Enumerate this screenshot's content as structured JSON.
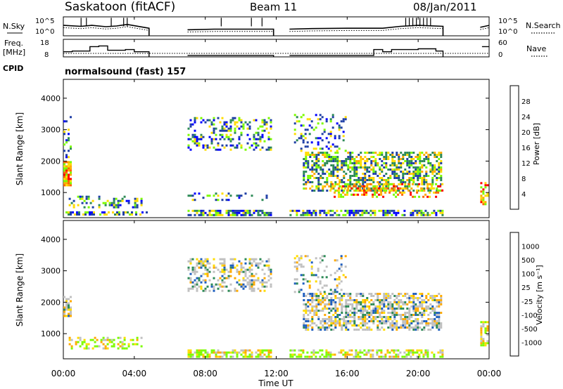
{
  "header": {
    "station": "Saskatoon (fitACF)",
    "beam": "Beam 11",
    "date": "08/Jan/2011",
    "cpid_label": "CPID",
    "program": "normalsound (fast) 157",
    "time_axis_label": "Time UT"
  },
  "chart_data": [
    {
      "type": "line",
      "id": "noise-panel",
      "left_label": "N.Sky",
      "right_label": "N.Search",
      "left_ticks": [
        "10^5",
        "10^0"
      ],
      "right_ticks": [
        "10^5",
        "10^0"
      ],
      "x_range": [
        0,
        24
      ],
      "gaps_hours": [
        [
          4.83,
          7.0
        ],
        [
          11.85,
          12.75
        ],
        [
          21.4,
          24.0
        ]
      ],
      "sky_series": [
        [
          0.0,
          0.55
        ],
        [
          1.0,
          0.5
        ],
        [
          1.6,
          0.55
        ],
        [
          2.4,
          0.48
        ],
        [
          3.0,
          0.52
        ],
        [
          3.6,
          0.6
        ],
        [
          4.83,
          0.4
        ],
        [
          7.0,
          0.32
        ],
        [
          8.5,
          0.35
        ],
        [
          10.0,
          0.35
        ],
        [
          11.85,
          0.35
        ],
        [
          12.75,
          0.35
        ],
        [
          14.0,
          0.38
        ],
        [
          16.0,
          0.4
        ],
        [
          18.0,
          0.4
        ],
        [
          19.0,
          0.5
        ],
        [
          20.0,
          0.55
        ],
        [
          21.4,
          0.5
        ],
        [
          23.5,
          0.45
        ],
        [
          24.0,
          0.55
        ]
      ],
      "search_series": "dotted",
      "spikes_hours": [
        1.0,
        1.3,
        2.7,
        3.4,
        3.6,
        8.9,
        10.6,
        11.2,
        19.3,
        19.5,
        19.7,
        19.9,
        20.1,
        20.3,
        20.5,
        20.7
      ]
    },
    {
      "type": "line",
      "id": "freq-panel",
      "left_label": "Freq.",
      "left_unit": "[MHz]",
      "left_ticks": [
        "18",
        "8"
      ],
      "right_label": "Nave",
      "right_ticks": [
        "60",
        "0"
      ],
      "x_range": [
        0,
        24
      ],
      "freq_steps_mhz": [
        [
          0.0,
          10.5
        ],
        [
          0.5,
          11.0
        ],
        [
          1.5,
          14.0
        ],
        [
          2.0,
          14.5
        ],
        [
          2.5,
          11.5
        ],
        [
          3.5,
          12.0
        ],
        [
          4.0,
          10.5
        ],
        [
          4.83,
          null
        ],
        [
          7.0,
          8.0
        ],
        [
          10.5,
          8.0
        ],
        [
          11.85,
          null
        ],
        [
          12.75,
          8.0
        ],
        [
          17.0,
          8.0
        ],
        [
          17.5,
          12.0
        ],
        [
          18.0,
          10.5
        ],
        [
          18.5,
          12.0
        ],
        [
          20.0,
          12.5
        ],
        [
          21.0,
          11.0
        ],
        [
          21.4,
          null
        ],
        [
          23.6,
          14.0
        ],
        [
          24.0,
          14.0
        ]
      ],
      "nave_dotted": 12
    },
    {
      "type": "heatmap",
      "id": "power-panel",
      "ylabel": "Slant Range [km]",
      "yticks": [
        1000,
        2000,
        3000,
        4000
      ],
      "ylim": [
        200,
        4600
      ],
      "x_range_hours": [
        0,
        24
      ],
      "colorbar": {
        "label": "Power [dB]",
        "ticks": [
          "28",
          "24",
          "20",
          "16",
          "12",
          "8",
          "4"
        ],
        "colors": [
          "#ff0000",
          "#ff6600",
          "#ffaa00",
          "#ffdd00",
          "#7cfc00",
          "#2e8b57",
          "#1f3fa6",
          "#0000ff"
        ]
      },
      "scatter_regions": [
        [
          0.0,
          0.5,
          1200,
          2000,
          0.9,
          "high"
        ],
        [
          0.0,
          0.5,
          2000,
          3500,
          0.25,
          "low"
        ],
        [
          0.3,
          4.5,
          500,
          900,
          0.35,
          "low"
        ],
        [
          0.0,
          4.8,
          250,
          400,
          0.5,
          "low"
        ],
        [
          7.0,
          11.8,
          250,
          450,
          0.7,
          "low"
        ],
        [
          7.0,
          11.8,
          2300,
          3400,
          0.3,
          "low"
        ],
        [
          7.0,
          11.8,
          700,
          1000,
          0.2,
          "low"
        ],
        [
          12.75,
          21.4,
          250,
          450,
          0.6,
          "low"
        ],
        [
          13.5,
          21.4,
          1000,
          2300,
          0.55,
          "mid"
        ],
        [
          15.0,
          21.4,
          800,
          1300,
          0.35,
          "high"
        ],
        [
          13.0,
          16.0,
          2300,
          3500,
          0.2,
          "low"
        ],
        [
          23.5,
          24.0,
          600,
          1400,
          0.6,
          "high"
        ]
      ]
    },
    {
      "type": "heatmap",
      "id": "velocity-panel",
      "ylabel": "Slant Range [km]",
      "yticks": [
        1000,
        2000,
        3000,
        4000
      ],
      "ylim": [
        200,
        4600
      ],
      "x_range_hours": [
        0,
        24
      ],
      "xticks": [
        "00:00",
        "04:00",
        "08:00",
        "12:00",
        "16:00",
        "20:00",
        "00:00"
      ],
      "xlabel": "Time UT",
      "colorbar": {
        "label": "Velocity [m s⁻¹]",
        "ticks": [
          "1000",
          "500",
          "100",
          "25",
          "-25",
          "-100",
          "-500",
          "-1000"
        ],
        "colors": [
          "#0000ff",
          "#1f5fbf",
          "#2e8b57",
          "#7cfc00",
          "#c0c0c0",
          "#ffdd00",
          "#ffaa00",
          "#ff6600",
          "#ff0000"
        ]
      },
      "scatter_regions": [
        [
          0.0,
          0.5,
          1500,
          2200,
          0.5,
          "grey"
        ],
        [
          0.3,
          4.5,
          500,
          900,
          0.35,
          "green"
        ],
        [
          7.0,
          11.8,
          250,
          500,
          0.7,
          "green"
        ],
        [
          7.0,
          11.8,
          2300,
          3400,
          0.35,
          "grey"
        ],
        [
          12.75,
          21.4,
          250,
          500,
          0.5,
          "green"
        ],
        [
          13.5,
          21.4,
          1100,
          2300,
          0.6,
          "grey"
        ],
        [
          13.0,
          16.0,
          2300,
          3500,
          0.2,
          "grey"
        ],
        [
          23.5,
          24.0,
          600,
          1400,
          0.6,
          "green"
        ]
      ]
    }
  ]
}
